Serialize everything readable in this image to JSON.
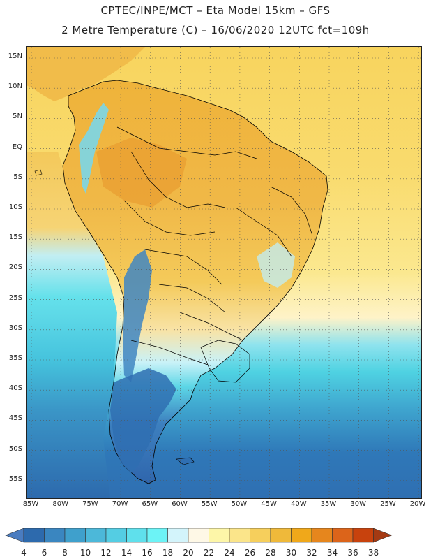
{
  "title_line1": "CPTEC/INPE/MCT  –   Eta Model 15km – GFS",
  "title_line2": "2 Metre Temperature (C) – 16/06/2020 12UTC fct=109h",
  "map": {
    "lat_labels": [
      "15N",
      "10N",
      "5N",
      "EQ",
      "5S",
      "10S",
      "15S",
      "20S",
      "25S",
      "30S",
      "35S",
      "40S",
      "45S",
      "50S",
      "55S"
    ],
    "lon_labels": [
      "85W",
      "80W",
      "75W",
      "70W",
      "65W",
      "60W",
      "55W",
      "50W",
      "45W",
      "40W",
      "35W",
      "30W",
      "25W",
      "20W"
    ],
    "grid": true
  },
  "colorbar": {
    "labels": [
      "4",
      "6",
      "8",
      "10",
      "12",
      "14",
      "16",
      "18",
      "20",
      "22",
      "24",
      "26",
      "28",
      "30",
      "32",
      "34",
      "36",
      "38"
    ],
    "colors": [
      "#4a7cc0",
      "#2d6aad",
      "#3a86c0",
      "#3fa0cc",
      "#4cb8d9",
      "#54cde3",
      "#5fe0ec",
      "#6cf3f6",
      "#d3f4fb",
      "#fef8e6",
      "#fdf6a8",
      "#fbe58a",
      "#f6cf5c",
      "#efb93a",
      "#f0a81a",
      "#e6861d",
      "#dc641a",
      "#c8420d",
      "#a43a13"
    ]
  }
}
